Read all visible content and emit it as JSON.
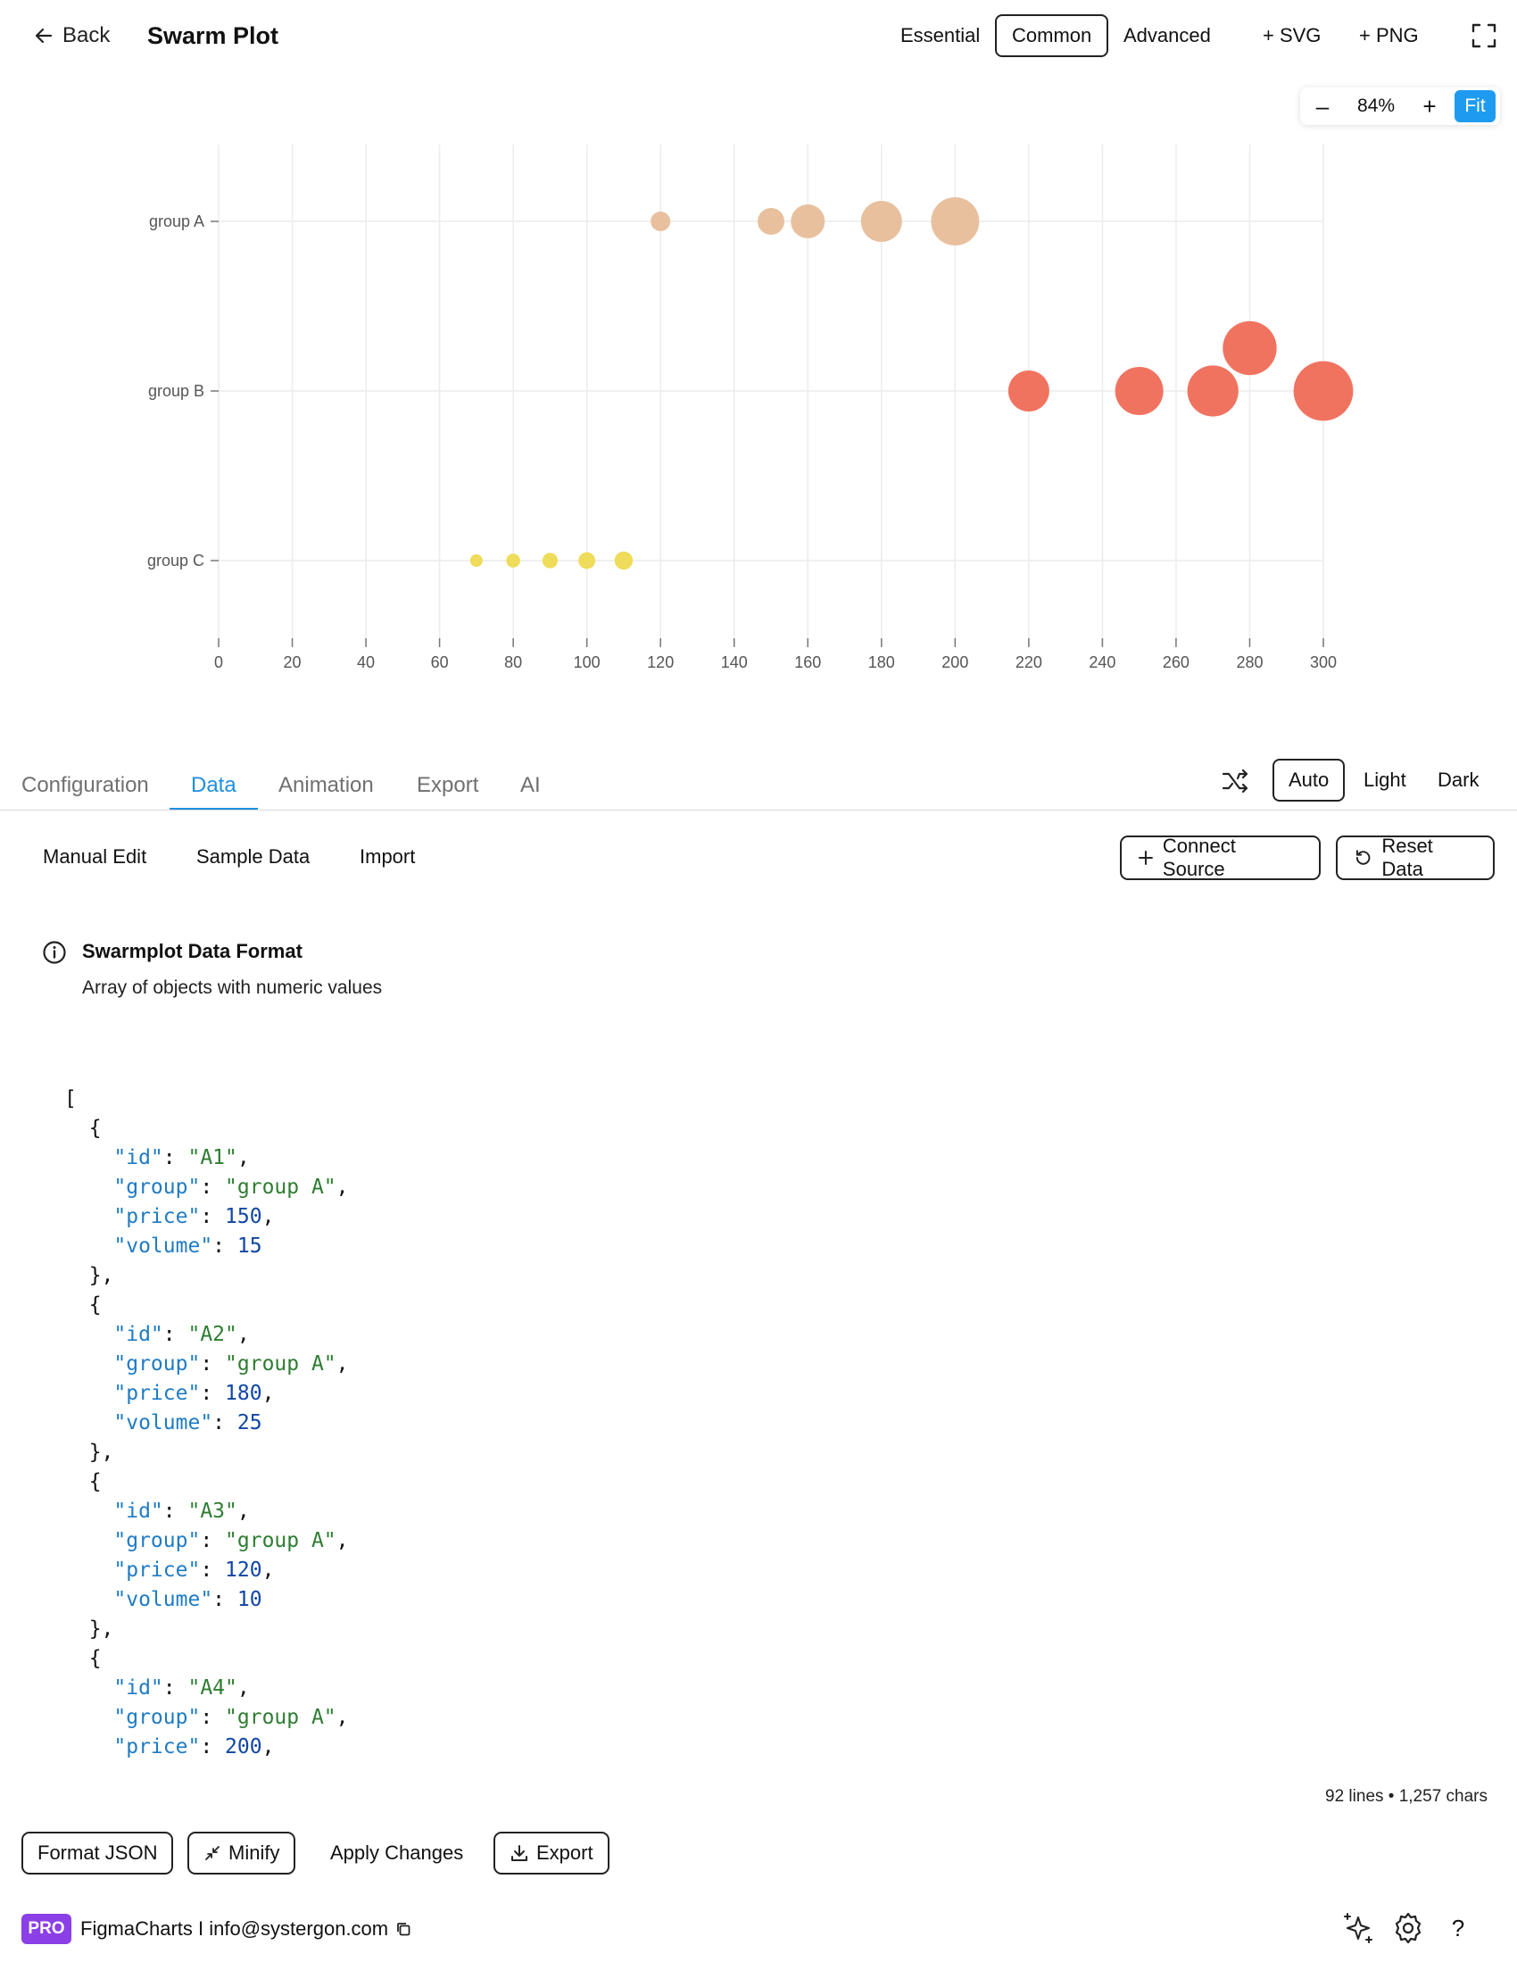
{
  "header": {
    "back_label": "Back",
    "title": "Swarm Plot",
    "levels": [
      "Essential",
      "Common",
      "Advanced"
    ],
    "active_level": "Common",
    "svg_label": "+ SVG",
    "png_label": "+ PNG"
  },
  "zoom": {
    "minus": "–",
    "value": "84%",
    "plus": "+",
    "fit": "Fit"
  },
  "chart_data": {
    "type": "scatter",
    "subtype": "swarm",
    "categories": [
      "group A",
      "group B",
      "group C"
    ],
    "x_ticks": [
      "0",
      "20",
      "40",
      "60",
      "80",
      "100",
      "120",
      "140",
      "160",
      "180",
      "200",
      "220",
      "240",
      "260",
      "280",
      "300"
    ],
    "xlim": [
      0,
      300
    ],
    "grid": true,
    "colors": {
      "group A": "#e8c09e",
      "group B": "#f07360",
      "group C": "#eedc5a"
    },
    "series": [
      {
        "name": "group A",
        "points": [
          {
            "price": 120,
            "volume": 10
          },
          {
            "price": 150,
            "volume": 15
          },
          {
            "price": 160,
            "volume": 20
          },
          {
            "price": 180,
            "volume": 25
          },
          {
            "price": 200,
            "volume": 30
          }
        ]
      },
      {
        "name": "group B",
        "points": [
          {
            "price": 220,
            "volume": 25
          },
          {
            "price": 250,
            "volume": 30
          },
          {
            "price": 270,
            "volume": 32
          },
          {
            "price": 280,
            "volume": 34
          },
          {
            "price": 300,
            "volume": 38
          }
        ]
      },
      {
        "name": "group C",
        "points": [
          {
            "price": 70,
            "volume": 5
          },
          {
            "price": 80,
            "volume": 6
          },
          {
            "price": 90,
            "volume": 7
          },
          {
            "price": 100,
            "volume": 8
          },
          {
            "price": 110,
            "volume": 9
          }
        ]
      }
    ]
  },
  "tabs": {
    "items": [
      "Configuration",
      "Data",
      "Animation",
      "Export",
      "AI"
    ],
    "active": "Data",
    "themes": [
      "Auto",
      "Light",
      "Dark"
    ],
    "active_theme": "Auto"
  },
  "data_panel": {
    "sub_tabs": [
      "Manual Edit",
      "Sample Data",
      "Import"
    ],
    "connect_label": "Connect Source",
    "reset_label": "Reset Data",
    "info_title": "Swarmplot Data Format",
    "info_subtitle": "Array of objects with numeric values",
    "code_records": [
      {
        "id": "A1",
        "group": "group A",
        "price": 150,
        "volume": 15
      },
      {
        "id": "A2",
        "group": "group A",
        "price": 180,
        "volume": 25
      },
      {
        "id": "A3",
        "group": "group A",
        "price": 120,
        "volume": 10
      },
      {
        "id": "A4",
        "group": "group A",
        "price": 200
      }
    ],
    "stats": "92 lines • 1,257 chars",
    "format_label": "Format JSON",
    "minify_label": "Minify",
    "apply_label": "Apply Changes",
    "export_label": "Export"
  },
  "footer": {
    "badge": "PRO",
    "text": "FigmaCharts I info@systergon.com",
    "help": "?"
  }
}
